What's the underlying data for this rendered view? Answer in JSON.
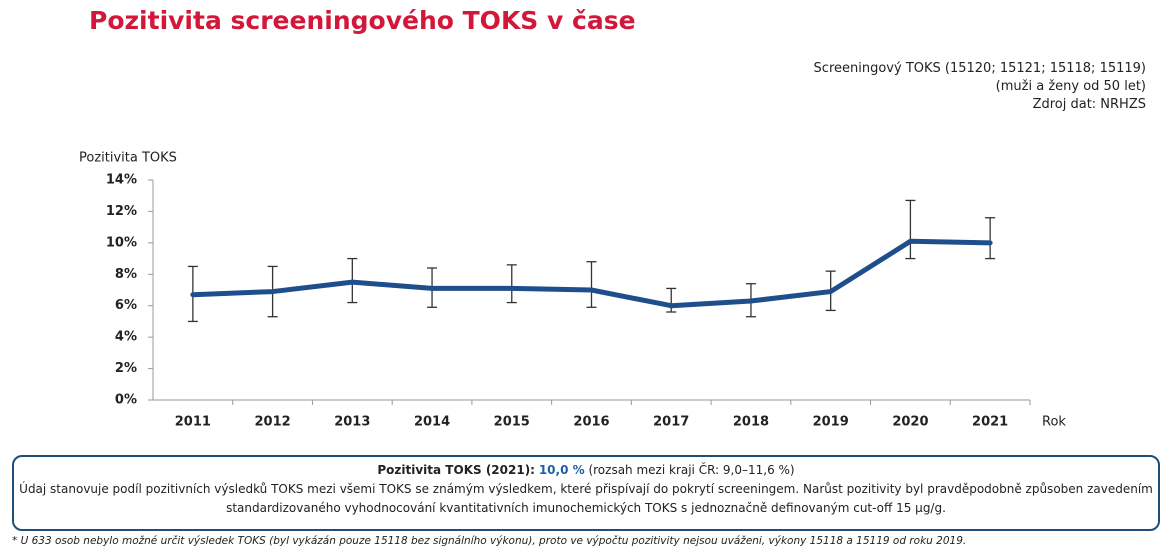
{
  "chart_data": {
    "type": "line",
    "title": "Pozitivita screeningového TOKS v čase",
    "source_lines": [
      "Screeningový TOKS (15120; 15121; 15118; 15119)",
      "(muži a ženy od 50 let)",
      "Zdroj dat: NRHZS"
    ],
    "y_label": "Pozitivita TOKS",
    "x_label": "Rok",
    "categories": [
      "2011",
      "2012",
      "2013",
      "2014",
      "2015",
      "2016",
      "2017",
      "2018",
      "2019",
      "2020",
      "2021"
    ],
    "series": [
      {
        "name": "Pozitivita TOKS",
        "color": "#1f4e8c",
        "values": [
          6.7,
          6.9,
          7.5,
          7.1,
          7.1,
          7.0,
          6.0,
          6.3,
          6.9,
          10.1,
          10.0
        ],
        "low": [
          5.0,
          5.3,
          6.2,
          5.9,
          6.2,
          5.9,
          5.6,
          5.3,
          5.7,
          9.0,
          9.0
        ],
        "high": [
          8.5,
          8.5,
          9.0,
          8.4,
          8.6,
          8.8,
          7.1,
          7.4,
          8.2,
          12.7,
          11.6
        ]
      }
    ],
    "ylim": [
      0,
      14
    ],
    "yticks": [
      {
        "value": 0,
        "label": "0%"
      },
      {
        "value": 2,
        "label": "2%"
      },
      {
        "value": 4,
        "label": "4%"
      },
      {
        "value": 6,
        "label": "6%"
      },
      {
        "value": 8,
        "label": "8%"
      },
      {
        "value": 10,
        "label": "10%"
      },
      {
        "value": 12,
        "label": "12%"
      },
      {
        "value": 14,
        "label": "14%"
      }
    ],
    "errorbar_color": "#333333"
  },
  "note_box": {
    "heading": "Pozitivita TOKS (2021):",
    "highlight": "10,0 %",
    "range": "(rozsah mezi kraji ČR: 9,0–11,6 %)",
    "text": "Údaj stanovuje podíl pozitivních výsledků TOKS mezi všemi TOKS se známým výsledkem, které přispívají do pokrytí screeningem. Narůst pozitivity byl pravděpodobně způsoben zavedením standardizovaného vyhodnocování kvantitativních imunochemických TOKS s jednoznačně definovaným cut-off 15 µg/g."
  },
  "footnote": "* U 633 osob nebylo možné určit výsledek TOKS (byl vykázán pouze 15118 bez signálního výkonu), proto ve výpočtu pozitivity nejsou uváženi, výkony 15118 a 15119 od roku 2019."
}
